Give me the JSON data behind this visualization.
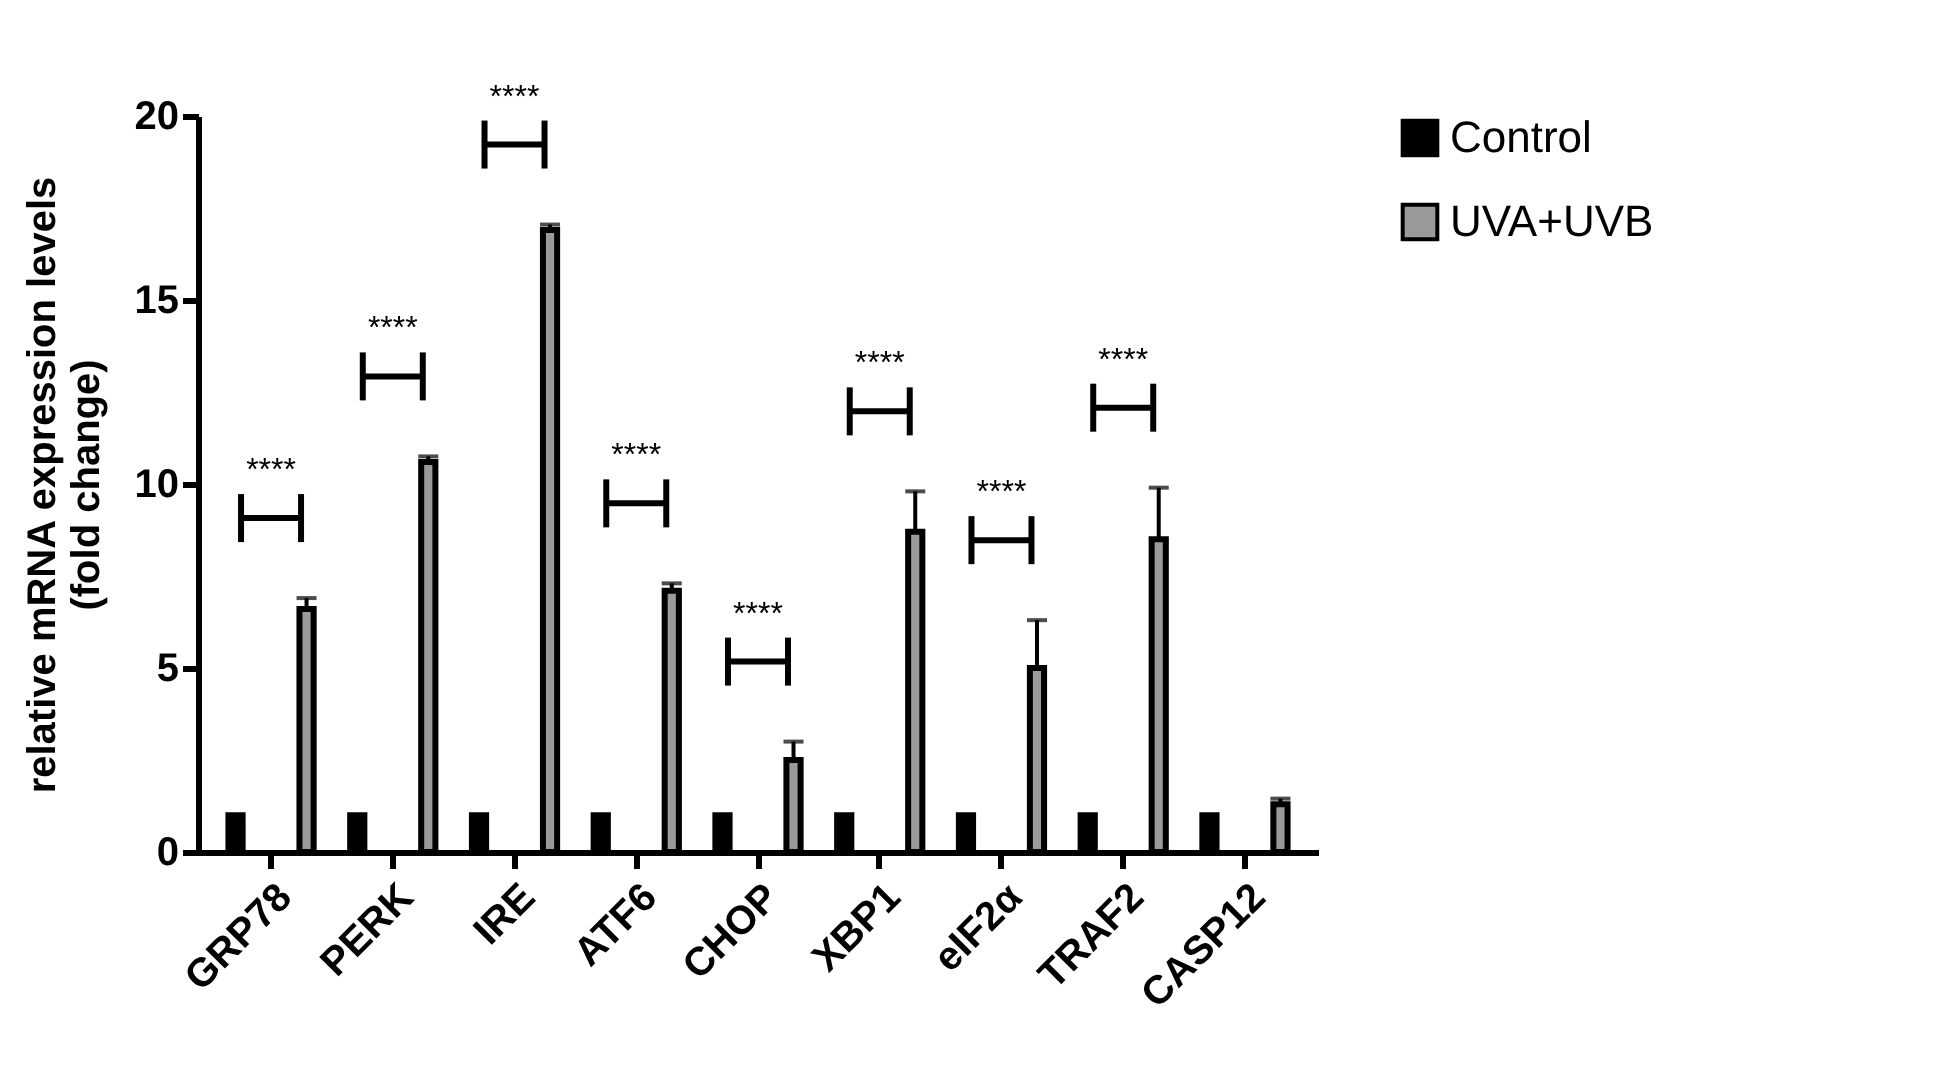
{
  "chart_data": {
    "type": "bar",
    "ylabel": "relative mRNA expression levels\n(fold change)",
    "categories": [
      "GRP78",
      "PERK",
      "IRE",
      "ATF6",
      "CHOP",
      "XBP1",
      "eIF2α",
      "TRAF2",
      "CASP12"
    ],
    "series": [
      {
        "name": "Control",
        "color": "#000000",
        "values": [
          1,
          1,
          1,
          1,
          1,
          1,
          1,
          1,
          1
        ]
      },
      {
        "name": "UVA+UVB",
        "color": "#9a9a9a",
        "values": [
          6.6,
          10.6,
          16.9,
          7.1,
          2.5,
          8.7,
          5.0,
          8.5,
          1.3
        ],
        "errors": [
          0.3,
          0.15,
          0.15,
          0.2,
          0.5,
          1.1,
          1.3,
          1.4,
          0.15
        ]
      }
    ],
    "ylim": [
      0,
      20
    ],
    "yticks": [
      0,
      5,
      10,
      15,
      20
    ],
    "grid": false,
    "legend": "top right",
    "annotations": [
      "****",
      "****",
      "****",
      "****",
      "****",
      "****",
      "****",
      "****"
    ]
  }
}
